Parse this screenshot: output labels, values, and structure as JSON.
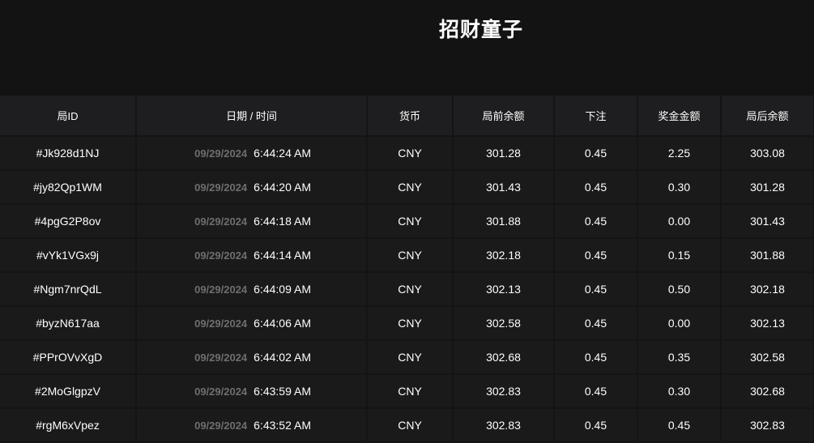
{
  "title": "招财童子",
  "columns": [
    "局ID",
    "日期 / 时间",
    "货币",
    "局前余额",
    "下注",
    "奖金金额",
    "局后余额"
  ],
  "rows": [
    {
      "id": "#Jk928d1NJ",
      "date": "09/29/2024",
      "time": "6:44:24 AM",
      "currency": "CNY",
      "before": "301.28",
      "bet": "0.45",
      "win": "2.25",
      "after": "303.08"
    },
    {
      "id": "#jy82Qp1WM",
      "date": "09/29/2024",
      "time": "6:44:20 AM",
      "currency": "CNY",
      "before": "301.43",
      "bet": "0.45",
      "win": "0.30",
      "after": "301.28"
    },
    {
      "id": "#4pgG2P8ov",
      "date": "09/29/2024",
      "time": "6:44:18 AM",
      "currency": "CNY",
      "before": "301.88",
      "bet": "0.45",
      "win": "0.00",
      "after": "301.43"
    },
    {
      "id": "#vYk1VGx9j",
      "date": "09/29/2024",
      "time": "6:44:14 AM",
      "currency": "CNY",
      "before": "302.18",
      "bet": "0.45",
      "win": "0.15",
      "after": "301.88"
    },
    {
      "id": "#Ngm7nrQdL",
      "date": "09/29/2024",
      "time": "6:44:09 AM",
      "currency": "CNY",
      "before": "302.13",
      "bet": "0.45",
      "win": "0.50",
      "after": "302.18"
    },
    {
      "id": "#byzN617aa",
      "date": "09/29/2024",
      "time": "6:44:06 AM",
      "currency": "CNY",
      "before": "302.58",
      "bet": "0.45",
      "win": "0.00",
      "after": "302.13"
    },
    {
      "id": "#PPrOVvXgD",
      "date": "09/29/2024",
      "time": "6:44:02 AM",
      "currency": "CNY",
      "before": "302.68",
      "bet": "0.45",
      "win": "0.35",
      "after": "302.58"
    },
    {
      "id": "#2MoGlgpzV",
      "date": "09/29/2024",
      "time": "6:43:59 AM",
      "currency": "CNY",
      "before": "302.83",
      "bet": "0.45",
      "win": "0.30",
      "after": "302.68"
    },
    {
      "id": "#rgM6xVpez",
      "date": "09/29/2024",
      "time": "6:43:52 AM",
      "currency": "CNY",
      "before": "302.83",
      "bet": "0.45",
      "win": "0.45",
      "after": "302.83"
    }
  ]
}
